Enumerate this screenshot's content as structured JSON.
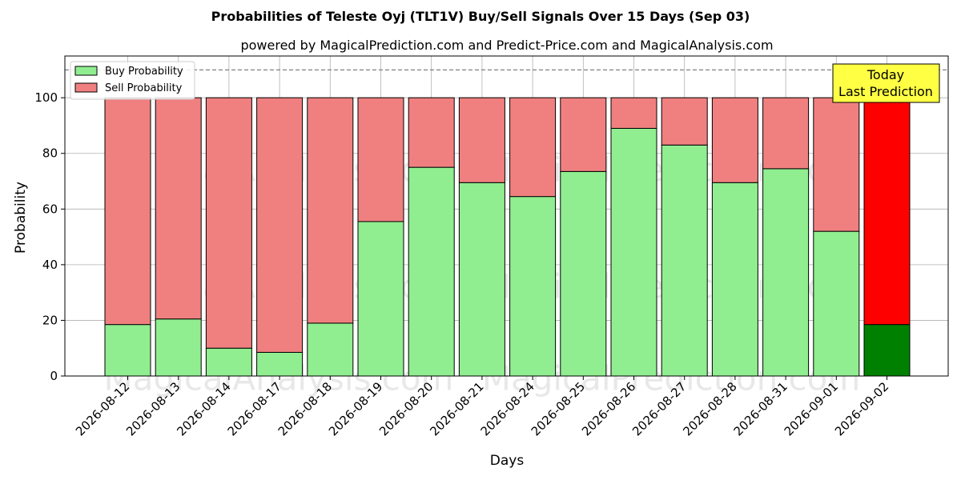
{
  "chart_data": {
    "type": "bar",
    "stacked": true,
    "title": "Probabilities of Teleste Oyj (TLT1V) Buy/Sell Signals Over 15 Days (Sep 03)",
    "subtitle": "powered by MagicalPrediction.com and Predict-Price.com and MagicalAnalysis.com",
    "xlabel": "Days",
    "ylabel": "Probability",
    "ylim": [
      0,
      115
    ],
    "yticks": [
      0,
      20,
      40,
      60,
      80,
      100
    ],
    "reference_line": 110,
    "grid": true,
    "legend_position": "top-left",
    "categories": [
      "2026-08-12",
      "2026-08-13",
      "2026-08-14",
      "2026-08-17",
      "2026-08-18",
      "2026-08-19",
      "2026-08-20",
      "2026-08-21",
      "2026-08-24",
      "2026-08-25",
      "2026-08-26",
      "2026-08-27",
      "2026-08-28",
      "2026-08-31",
      "2026-09-01",
      "2026-09-02"
    ],
    "series": [
      {
        "name": "Buy Probability",
        "color": "#90ee90",
        "highlight_color": "#008000",
        "values": [
          18.5,
          20.5,
          10,
          8.5,
          19,
          55.5,
          75,
          69.5,
          64.5,
          73.5,
          89,
          83,
          69.5,
          74.5,
          52,
          18.5
        ]
      },
      {
        "name": "Sell Probability",
        "color": "#f08080",
        "highlight_color": "#ff0000",
        "values": [
          81.5,
          79.5,
          90,
          91.5,
          81,
          44.5,
          25,
          30.5,
          35.5,
          26.5,
          11,
          17,
          30.5,
          25.5,
          48,
          81.5
        ]
      }
    ],
    "highlight_index": 15,
    "annotation": {
      "line1": "Today",
      "line2": "Last Prediction",
      "color": "#ffff44"
    },
    "watermarks": [
      "MagicalAnalysis.com",
      "MagicalPrediction.com"
    ]
  }
}
